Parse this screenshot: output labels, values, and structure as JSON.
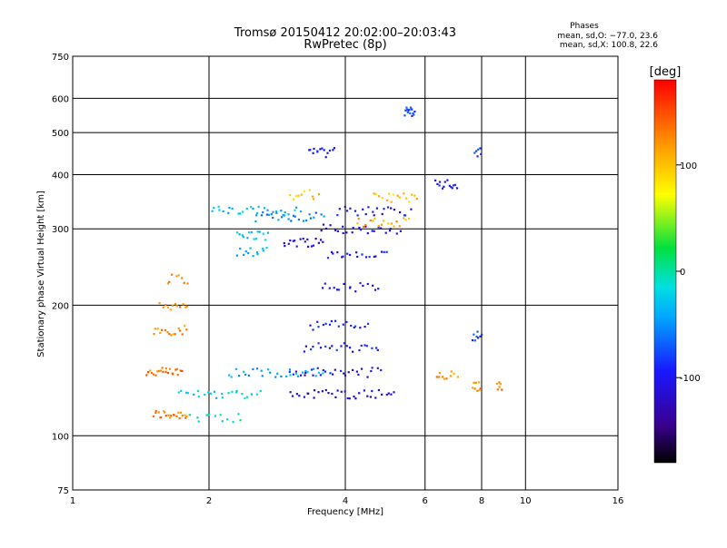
{
  "chart_data": {
    "type": "scatter",
    "title": "Tromsø 20150412 20:02:00–20:03:43",
    "subtitle": "RwPretec (8p)",
    "xlabel": "Frequency [MHz]",
    "ylabel": "Stationary phase Virtual Height [km]",
    "xscale": "log",
    "yscale": "log",
    "xlim": [
      1,
      16
    ],
    "ylim": [
      75,
      750
    ],
    "x_ticks": [
      {
        "value": 1,
        "label": "1"
      },
      {
        "value": 2,
        "label": "2"
      },
      {
        "value": 4,
        "label": "4"
      },
      {
        "value": 6,
        "label": "6"
      },
      {
        "value": 8,
        "label": "8"
      },
      {
        "value": 10,
        "label": "10"
      },
      {
        "value": 16,
        "label": "16"
      }
    ],
    "x_minor_grid": [
      6,
      8,
      10
    ],
    "y_ticks": [
      {
        "value": 75,
        "label": "75"
      },
      {
        "value": 100,
        "label": "100"
      },
      {
        "value": 200,
        "label": "200"
      },
      {
        "value": 300,
        "label": "300"
      },
      {
        "value": 400,
        "label": "400"
      },
      {
        "value": 500,
        "label": "500"
      },
      {
        "value": 600,
        "label": "600"
      },
      {
        "value": 750,
        "label": "750"
      }
    ],
    "grid": true,
    "colorbar": {
      "label": "[deg]",
      "range": [
        -180,
        180
      ],
      "ticks": [
        {
          "value": 100,
          "label": "100"
        },
        {
          "value": 0,
          "label": "0"
        },
        {
          "value": -100,
          "label": "-100"
        }
      ]
    },
    "stats": {
      "header": "Phases",
      "line_o": "mean, sd,O: −77.0, 23.6",
      "line_x": "mean, sd,X: 100.8, 22.6"
    },
    "traces": [
      {
        "x_range": [
          1.5,
          1.8
        ],
        "y": 112,
        "phase": 130,
        "n": 22
      },
      {
        "x_range": [
          1.45,
          1.75
        ],
        "y": 140,
        "phase": 135,
        "n": 22
      },
      {
        "x_range": [
          1.5,
          1.8
        ],
        "y": 175,
        "phase": 120,
        "n": 16
      },
      {
        "x_range": [
          1.55,
          1.8
        ],
        "y": 200,
        "phase": 125,
        "n": 12
      },
      {
        "x_range": [
          1.6,
          1.8
        ],
        "y": 230,
        "phase": 120,
        "n": 8
      },
      {
        "x_range": [
          1.8,
          2.4
        ],
        "y": 110,
        "phase": -10,
        "n": 12
      },
      {
        "x_range": [
          1.7,
          2.6
        ],
        "y": 125,
        "phase": -20,
        "n": 24
      },
      {
        "x_range": [
          2.2,
          3.6
        ],
        "y": 140,
        "phase": -40,
        "n": 28
      },
      {
        "x_range": [
          2.0,
          3.2
        ],
        "y": 330,
        "phase": -30,
        "n": 28
      },
      {
        "x_range": [
          2.3,
          2.7
        ],
        "y": 290,
        "phase": -30,
        "n": 14
      },
      {
        "x_range": [
          2.3,
          2.7
        ],
        "y": 265,
        "phase": -40,
        "n": 12
      },
      {
        "x_range": [
          2.5,
          3.6
        ],
        "y": 320,
        "phase": -60,
        "n": 24
      },
      {
        "x_range": [
          2.9,
          3.6
        ],
        "y": 280,
        "phase": -110,
        "n": 18
      },
      {
        "x_range": [
          3.0,
          5.2
        ],
        "y": 125,
        "phase": -110,
        "n": 34
      },
      {
        "x_range": [
          3.0,
          4.8
        ],
        "y": 140,
        "phase": -100,
        "n": 28
      },
      {
        "x_range": [
          3.2,
          4.8
        ],
        "y": 160,
        "phase": -95,
        "n": 22
      },
      {
        "x_range": [
          3.3,
          4.5
        ],
        "y": 180,
        "phase": -90,
        "n": 18
      },
      {
        "x_range": [
          3.5,
          4.8
        ],
        "y": 220,
        "phase": -95,
        "n": 16
      },
      {
        "x_range": [
          3.6,
          5.0
        ],
        "y": 260,
        "phase": -100,
        "n": 18
      },
      {
        "x_range": [
          3.5,
          5.3
        ],
        "y": 300,
        "phase": -110,
        "n": 24
      },
      {
        "x_range": [
          3.8,
          5.6
        ],
        "y": 330,
        "phase": -100,
        "n": 22
      },
      {
        "x_range": [
          3.0,
          3.5
        ],
        "y": 360,
        "phase": 100,
        "n": 10
      },
      {
        "x_range": [
          4.2,
          5.6
        ],
        "y": 310,
        "phase": 110,
        "n": 18
      },
      {
        "x_range": [
          4.6,
          5.8
        ],
        "y": 355,
        "phase": 100,
        "n": 16
      },
      {
        "x_range": [
          3.3,
          3.8
        ],
        "y": 450,
        "phase": -100,
        "n": 14
      },
      {
        "x_range": [
          5.4,
          5.7
        ],
        "y": 560,
        "phase": -80,
        "n": 14
      },
      {
        "x_range": [
          6.3,
          7.1
        ],
        "y": 380,
        "phase": -100,
        "n": 14
      },
      {
        "x_range": [
          6.3,
          7.1
        ],
        "y": 138,
        "phase": 120,
        "n": 10
      },
      {
        "x_range": [
          7.6,
          8.0
        ],
        "y": 130,
        "phase": 130,
        "n": 8
      },
      {
        "x_range": [
          7.6,
          8.0
        ],
        "y": 170,
        "phase": -80,
        "n": 8
      },
      {
        "x_range": [
          7.7,
          8.0
        ],
        "y": 450,
        "phase": -80,
        "n": 6
      },
      {
        "x_range": [
          8.6,
          8.9
        ],
        "y": 130,
        "phase": 130,
        "n": 6
      }
    ]
  }
}
